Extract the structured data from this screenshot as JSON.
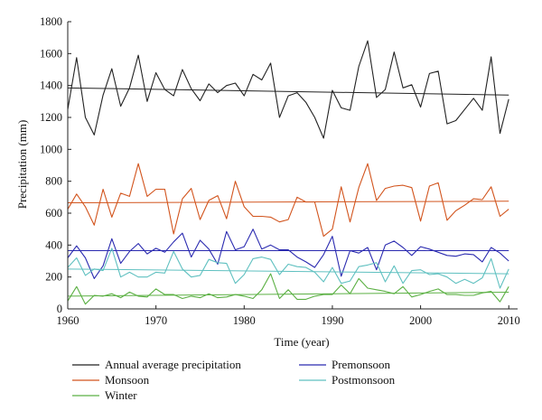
{
  "chart_data": {
    "type": "line",
    "xlabel": "Time (year)",
    "ylabel": "Precipitation (mm)",
    "xlim": [
      1960,
      2011
    ],
    "ylim": [
      0,
      1800
    ],
    "xticks": [
      1960,
      1970,
      1980,
      1990,
      2000,
      2010
    ],
    "yticks": [
      0,
      200,
      400,
      600,
      800,
      1000,
      1200,
      1400,
      1600,
      1800
    ],
    "grid": false,
    "legend_position": "bottom",
    "x": [
      1960,
      1961,
      1962,
      1963,
      1964,
      1965,
      1966,
      1967,
      1968,
      1969,
      1970,
      1971,
      1972,
      1973,
      1974,
      1975,
      1976,
      1977,
      1978,
      1979,
      1980,
      1981,
      1982,
      1983,
      1984,
      1985,
      1986,
      1987,
      1988,
      1989,
      1990,
      1991,
      1992,
      1993,
      1994,
      1995,
      1996,
      1997,
      1998,
      1999,
      2000,
      2001,
      2002,
      2003,
      2004,
      2005,
      2006,
      2007,
      2008,
      2009,
      2010
    ],
    "series": [
      {
        "name": "Annual average precipitation",
        "color": "#222222",
        "values": [
          1250,
          1575,
          1200,
          1090,
          1340,
          1505,
          1270,
          1385,
          1590,
          1300,
          1480,
          1375,
          1335,
          1500,
          1380,
          1305,
          1410,
          1355,
          1400,
          1415,
          1335,
          1470,
          1435,
          1540,
          1200,
          1335,
          1355,
          1295,
          1200,
          1070,
          1370,
          1260,
          1245,
          1520,
          1680,
          1325,
          1375,
          1610,
          1385,
          1405,
          1265,
          1475,
          1490,
          1160,
          1180,
          1250,
          1320,
          1245,
          1580,
          1100,
          1315
        ],
        "trend": [
          1385,
          1340
        ]
      },
      {
        "name": "Monsoon",
        "color": "#d2541d",
        "values": [
          625,
          720,
          640,
          525,
          750,
          575,
          725,
          705,
          910,
          705,
          750,
          750,
          470,
          690,
          755,
          560,
          680,
          710,
          565,
          800,
          640,
          580,
          580,
          575,
          545,
          560,
          700,
          670,
          670,
          455,
          500,
          765,
          545,
          760,
          910,
          680,
          755,
          770,
          775,
          760,
          550,
          770,
          790,
          555,
          615,
          650,
          690,
          685,
          765,
          580,
          625
        ],
        "trend": [
          665,
          675
        ]
      },
      {
        "name": "Winter",
        "color": "#5bb043",
        "values": [
          50,
          140,
          30,
          85,
          80,
          95,
          70,
          105,
          80,
          75,
          125,
          90,
          90,
          65,
          80,
          70,
          95,
          70,
          75,
          90,
          80,
          65,
          120,
          220,
          65,
          120,
          60,
          60,
          80,
          90,
          90,
          150,
          95,
          190,
          130,
          120,
          110,
          95,
          140,
          75,
          90,
          110,
          125,
          90,
          90,
          85,
          85,
          100,
          110,
          45,
          140
        ],
        "trend": [
          80,
          105
        ]
      },
      {
        "name": "Premonsoon",
        "color": "#2b2bb0",
        "values": [
          320,
          395,
          320,
          190,
          270,
          440,
          285,
          360,
          410,
          345,
          380,
          355,
          420,
          475,
          325,
          430,
          375,
          280,
          485,
          370,
          390,
          500,
          375,
          400,
          370,
          370,
          325,
          295,
          260,
          340,
          455,
          205,
          365,
          350,
          385,
          245,
          400,
          425,
          385,
          335,
          390,
          375,
          355,
          335,
          330,
          345,
          340,
          295,
          385,
          350,
          300
        ],
        "trend": [
          365,
          365
        ]
      },
      {
        "name": "Postmonsoon",
        "color": "#5fc0c0",
        "values": [
          260,
          320,
          210,
          250,
          240,
          380,
          200,
          230,
          200,
          200,
          230,
          225,
          360,
          250,
          200,
          210,
          310,
          290,
          285,
          160,
          215,
          315,
          325,
          310,
          215,
          280,
          265,
          260,
          230,
          170,
          260,
          160,
          175,
          265,
          275,
          290,
          170,
          270,
          160,
          240,
          245,
          215,
          220,
          200,
          160,
          185,
          160,
          195,
          315,
          130,
          250
        ],
        "trend": [
          250,
          220
        ]
      }
    ]
  }
}
